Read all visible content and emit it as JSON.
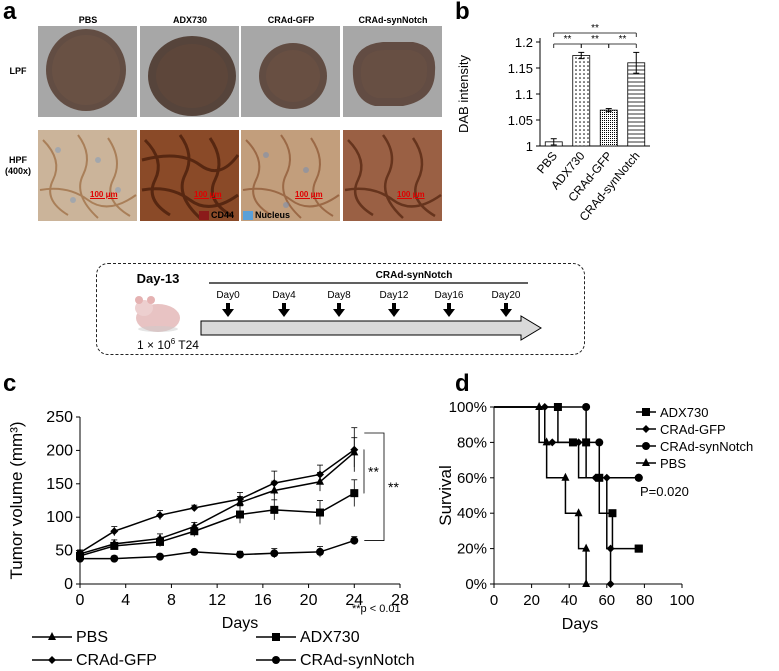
{
  "panel_a": {
    "letter": "a",
    "columns": [
      "PBS",
      "ADX730",
      "CRAd-GFP",
      "CRAd-synNotch"
    ],
    "rows": [
      {
        "label": "LPF"
      },
      {
        "label": "HPF",
        "sublabel": "(400x)"
      }
    ],
    "scale_bar_label": "100 μm",
    "legend": [
      {
        "label": "CD44",
        "color": "#8b1a1a"
      },
      {
        "label": "Nucleus",
        "color": "#5aa0d8"
      }
    ]
  },
  "schedule": {
    "start_label": "Day-13",
    "cells_label_prefix": "1 × 10",
    "cells_label_exp": "6",
    "cells_label_suffix": " T24",
    "treatment": "CRAd-synNotch",
    "days": [
      "Day0",
      "Day4",
      "Day8",
      "Day12",
      "Day16",
      "Day20"
    ]
  },
  "chart_data": [
    {
      "panel": "b",
      "type": "bar",
      "categories": [
        "PBS",
        "ADX730",
        "CRAd-GFP",
        "CRAd-synNotch"
      ],
      "values": [
        1.008,
        1.174,
        1.069,
        1.16
      ],
      "errors": [
        0.006,
        0.006,
        0.003,
        0.02
      ],
      "ylabel": "DAB intensity",
      "ylim": [
        1,
        1.2
      ],
      "yticks": [
        "1",
        "1.05",
        "1.1",
        "1.15",
        "1.2"
      ],
      "significance": [
        "**",
        "**",
        "**",
        "**"
      ]
    },
    {
      "panel": "c",
      "type": "line",
      "xlabel": "Days",
      "ylabel": "Tumor volume (mm³)",
      "xlim": [
        0,
        28
      ],
      "ylim": [
        0,
        250
      ],
      "xticks": [
        "0",
        "4",
        "8",
        "12",
        "16",
        "20",
        "24",
        "28"
      ],
      "yticks": [
        "0",
        "50",
        "100",
        "150",
        "200",
        "250"
      ],
      "series": [
        {
          "name": "PBS",
          "marker": "triangle",
          "x": [
            0,
            3,
            7,
            10,
            14,
            17,
            21,
            24
          ],
          "y": [
            45,
            60,
            68,
            86,
            122,
            140,
            153,
            197
          ],
          "err": [
            4,
            6,
            7,
            6,
            9,
            14,
            14,
            22
          ]
        },
        {
          "name": "ADX730",
          "marker": "square",
          "x": [
            0,
            3,
            7,
            10,
            14,
            17,
            21,
            24
          ],
          "y": [
            42,
            57,
            63,
            79,
            104,
            111,
            107,
            136
          ],
          "err": [
            4,
            5,
            7,
            8,
            13,
            15,
            18,
            20
          ]
        },
        {
          "name": "CRAd-GFP",
          "marker": "diamond",
          "x": [
            0,
            3,
            7,
            10,
            14,
            17,
            21,
            24
          ],
          "y": [
            47,
            79,
            103,
            114,
            127,
            151,
            164,
            201
          ],
          "err": [
            4,
            7,
            7,
            4,
            10,
            18,
            14,
            33
          ]
        },
        {
          "name": "CRAd-synNotch",
          "marker": "circle",
          "x": [
            0,
            3,
            7,
            10,
            14,
            17,
            21,
            24
          ],
          "y": [
            38,
            38,
            41,
            48,
            44,
            46,
            48,
            65
          ],
          "err": [
            3,
            4,
            3,
            3,
            5,
            7,
            8,
            6
          ]
        }
      ],
      "annotations": [
        "**",
        "**",
        "**p < 0.01"
      ]
    },
    {
      "panel": "d",
      "type": "line",
      "subtype": "kaplan-meier",
      "xlabel": "Days",
      "ylabel": "Survival",
      "xlim": [
        0,
        100
      ],
      "ylim": [
        0,
        100
      ],
      "xticks": [
        "0",
        "20",
        "40",
        "60",
        "80",
        "100"
      ],
      "yticks": [
        "0%",
        "20%",
        "40%",
        "60%",
        "80%",
        "100%"
      ],
      "series": [
        {
          "name": "ADX730",
          "marker": "square",
          "x": [
            0,
            34,
            42,
            49,
            56,
            63,
            77
          ],
          "y": [
            100,
            80,
            80,
            60,
            40,
            20,
            20
          ]
        },
        {
          "name": "CRAd-GFP",
          "marker": "diamond",
          "x": [
            0,
            27,
            31,
            45,
            54,
            60,
            62
          ],
          "y": [
            100,
            80,
            80,
            60,
            60,
            20,
            0
          ]
        },
        {
          "name": "CRAd-synNotch",
          "marker": "circle",
          "x": [
            0,
            49,
            56,
            77
          ],
          "y": [
            100,
            80,
            60,
            60
          ]
        },
        {
          "name": "PBS",
          "marker": "triangle",
          "x": [
            0,
            24,
            28,
            38,
            45,
            49
          ],
          "y": [
            100,
            80,
            60,
            40,
            20,
            0
          ]
        }
      ],
      "annotation": "P=0.020"
    }
  ]
}
